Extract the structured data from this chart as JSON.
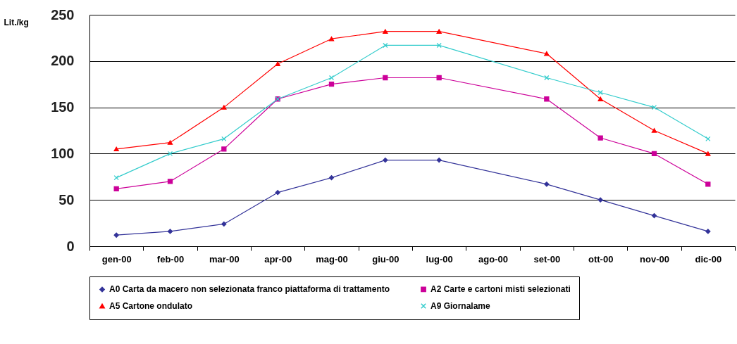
{
  "chart_data": {
    "type": "line",
    "ylabel": "Lit./kg",
    "categories": [
      "gen-00",
      "feb-00",
      "mar-00",
      "apr-00",
      "mag-00",
      "giu-00",
      "lug-00",
      "ago-00",
      "set-00",
      "ott-00",
      "nov-00",
      "dic-00"
    ],
    "ylim": [
      0,
      250
    ],
    "yticks": [
      0,
      50,
      100,
      150,
      200,
      250
    ],
    "grid": "y",
    "legend": "bottom",
    "series": [
      {
        "name": "A0 Carta da macero non selezionata franco piattaforma di trattamento",
        "color": "#333399",
        "marker": "diamond",
        "values": [
          12,
          16,
          24,
          58,
          74,
          93,
          93,
          null,
          67,
          50,
          33,
          16
        ]
      },
      {
        "name": "A2 Carte e cartoni misti selezionati",
        "color": "#cc0099",
        "marker": "square",
        "values": [
          62,
          70,
          105,
          159,
          175,
          182,
          182,
          null,
          159,
          117,
          100,
          67
        ]
      },
      {
        "name": "A5 Cartone ondulato",
        "color": "#ff0000",
        "marker": "triangle",
        "values": [
          105,
          112,
          150,
          197,
          224,
          232,
          232,
          null,
          208,
          159,
          125,
          100
        ]
      },
      {
        "name": "A9 Giornalame",
        "color": "#33cccc",
        "marker": "cross",
        "values": [
          74,
          100,
          116,
          159,
          182,
          217,
          217,
          null,
          182,
          166,
          150,
          116
        ]
      }
    ]
  }
}
